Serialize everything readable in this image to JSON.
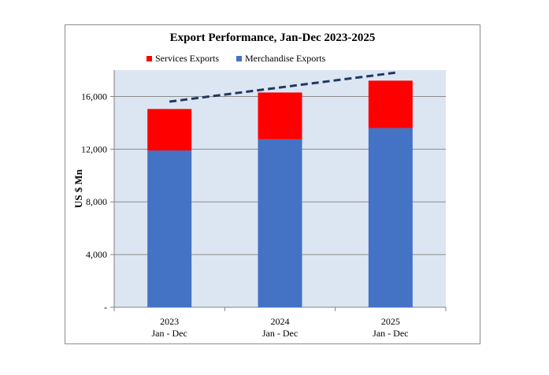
{
  "chart_data": {
    "type": "bar",
    "stacked": true,
    "title": "Export Performance, Jan-Dec  2023-2025",
    "ylabel": "US $ Mn",
    "xlabel": "",
    "categories": [
      [
        "2023",
        "Jan - Dec"
      ],
      [
        "2024",
        "Jan - Dec"
      ],
      [
        "2025",
        "Jan - Dec"
      ]
    ],
    "series": [
      {
        "name": "Merchandise Exports",
        "color": "#4472C4",
        "values": [
          11900,
          12750,
          13600
        ]
      },
      {
        "name": "Services Exports",
        "color": "#FF0000",
        "values": [
          3150,
          3550,
          3600
        ]
      }
    ],
    "legend_order": [
      1,
      0
    ],
    "legend_position": "top",
    "trendline": {
      "style": "dashed",
      "color": "#1F3864"
    },
    "yticks": [
      "-",
      "4,000",
      "8,000",
      "12,000",
      "16,000"
    ],
    "ytick_values": [
      0,
      4000,
      8000,
      12000,
      16000
    ],
    "ylim": [
      0,
      18000
    ],
    "grid": true,
    "plot_background": "#DCE6F2"
  }
}
